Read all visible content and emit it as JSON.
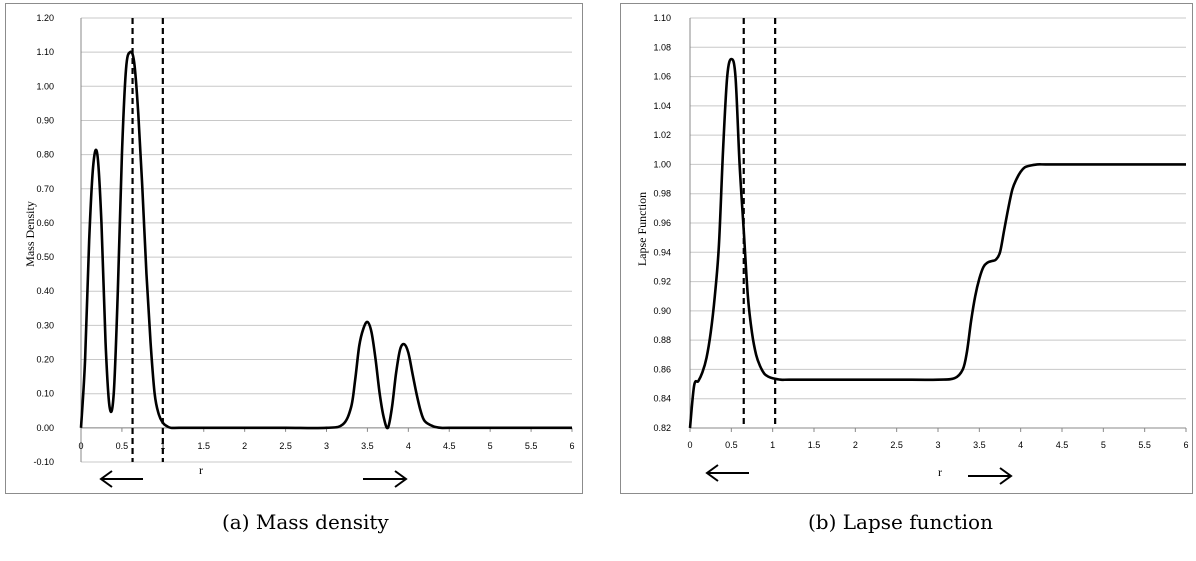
{
  "charts": [
    {
      "id": "a",
      "caption": "(a) Mass density",
      "chart_data": {
        "type": "line",
        "xlabel": "r",
        "ylabel": "Mass Density",
        "xlim": [
          0,
          6
        ],
        "ylim": [
          -0.1,
          1.2
        ],
        "x_ticks": [
          "0",
          "0.5",
          "1",
          "1.5",
          "2",
          "2.5",
          "3",
          "3.5",
          "4",
          "4.5",
          "5",
          "5.5",
          "6"
        ],
        "y_ticks": [
          "-0.10",
          "0.00",
          "0.10",
          "0.20",
          "0.30",
          "0.40",
          "0.50",
          "0.60",
          "0.70",
          "0.80",
          "0.90",
          "1.00",
          "1.10",
          "1.20"
        ],
        "grid": "horizontal",
        "vlines_dashed": [
          0.63,
          1.0
        ],
        "arrows": [
          "left",
          "right"
        ],
        "series": [
          {
            "x": [
              0,
              0.05,
              0.1,
              0.15,
              0.2,
              0.25,
              0.3,
              0.35,
              0.4,
              0.45,
              0.5,
              0.55,
              0.6,
              0.65,
              0.7,
              0.75,
              0.8,
              0.85,
              0.9,
              0.95,
              1.0,
              1.05,
              1.1,
              1.2,
              1.5,
              2.0,
              2.5,
              3.0,
              3.2,
              3.3,
              3.35,
              3.4,
              3.45,
              3.5,
              3.55,
              3.6,
              3.65,
              3.7,
              3.75,
              3.8,
              3.85,
              3.9,
              3.95,
              4.0,
              4.05,
              4.1,
              4.15,
              4.2,
              4.3,
              4.4,
              4.5,
              5.0,
              5.5,
              6.0
            ],
            "y": [
              0.0,
              0.2,
              0.55,
              0.77,
              0.8,
              0.6,
              0.25,
              0.06,
              0.1,
              0.4,
              0.8,
              1.05,
              1.1,
              1.07,
              0.92,
              0.7,
              0.45,
              0.25,
              0.1,
              0.04,
              0.015,
              0.005,
              0.0,
              0.0,
              0.0,
              0.0,
              0.0,
              0.0,
              0.01,
              0.06,
              0.14,
              0.24,
              0.29,
              0.31,
              0.28,
              0.2,
              0.1,
              0.03,
              0.0,
              0.06,
              0.16,
              0.23,
              0.245,
              0.22,
              0.16,
              0.1,
              0.05,
              0.02,
              0.005,
              0.0,
              0.0,
              0.0,
              0.0,
              0.0
            ]
          }
        ]
      }
    },
    {
      "id": "b",
      "caption": "(b) Lapse function",
      "chart_data": {
        "type": "line",
        "xlabel": "r",
        "ylabel": "Lapse Function",
        "xlim": [
          0,
          6
        ],
        "ylim": [
          0.82,
          1.1
        ],
        "x_ticks": [
          "0",
          "0.5",
          "1",
          "1.5",
          "2",
          "2.5",
          "3",
          "3.5",
          "4",
          "4.5",
          "5",
          "5.5",
          "6"
        ],
        "y_ticks": [
          "0.82",
          "0.84",
          "0.86",
          "0.88",
          "0.90",
          "0.92",
          "0.94",
          "0.96",
          "0.98",
          "1.00",
          "1.02",
          "1.04",
          "1.06",
          "1.08",
          "1.10"
        ],
        "grid": "horizontal",
        "vlines_dashed": [
          0.65,
          1.03
        ],
        "arrows": [
          "left",
          "right"
        ],
        "series": [
          {
            "x": [
              0,
              0.05,
              0.1,
              0.15,
              0.2,
              0.25,
              0.3,
              0.35,
              0.4,
              0.45,
              0.5,
              0.55,
              0.6,
              0.65,
              0.7,
              0.75,
              0.8,
              0.85,
              0.9,
              0.95,
              1.0,
              1.1,
              1.2,
              1.5,
              2.0,
              2.5,
              3.0,
              3.2,
              3.3,
              3.35,
              3.4,
              3.45,
              3.5,
              3.55,
              3.6,
              3.65,
              3.7,
              3.75,
              3.8,
              3.85,
              3.9,
              3.95,
              4.0,
              4.05,
              4.1,
              4.2,
              4.3,
              4.5,
              5.0,
              5.5,
              6.0
            ],
            "y": [
              0.82,
              0.849,
              0.852,
              0.858,
              0.868,
              0.885,
              0.91,
              0.945,
              1.01,
              1.06,
              1.072,
              1.06,
              1.0,
              0.955,
              0.91,
              0.885,
              0.87,
              0.862,
              0.857,
              0.855,
              0.854,
              0.853,
              0.853,
              0.853,
              0.853,
              0.853,
              0.853,
              0.854,
              0.86,
              0.872,
              0.893,
              0.91,
              0.922,
              0.93,
              0.933,
              0.934,
              0.935,
              0.94,
              0.955,
              0.97,
              0.983,
              0.99,
              0.995,
              0.998,
              0.999,
              1.0,
              1.0,
              1.0,
              1.0,
              1.0,
              1.0
            ]
          }
        ]
      }
    }
  ]
}
